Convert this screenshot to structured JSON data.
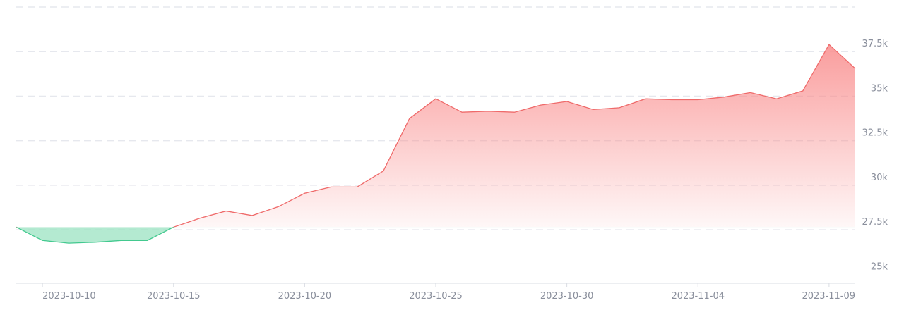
{
  "chart_data": {
    "type": "area",
    "baseline": 27650,
    "x": [
      "2023-10-09",
      "2023-10-10",
      "2023-10-11",
      "2023-10-12",
      "2023-10-13",
      "2023-10-14",
      "2023-10-15",
      "2023-10-16",
      "2023-10-17",
      "2023-10-18",
      "2023-10-19",
      "2023-10-20",
      "2023-10-21",
      "2023-10-22",
      "2023-10-23",
      "2023-10-24",
      "2023-10-25",
      "2023-10-26",
      "2023-10-27",
      "2023-10-28",
      "2023-10-29",
      "2023-10-30",
      "2023-10-31",
      "2023-11-01",
      "2023-11-02",
      "2023-11-03",
      "2023-11-04",
      "2023-11-05",
      "2023-11-06",
      "2023-11-07",
      "2023-11-08",
      "2023-11-09",
      "2023-11-10"
    ],
    "values": [
      27650,
      26900,
      26750,
      26800,
      26900,
      26900,
      27650,
      28150,
      28550,
      28300,
      28800,
      29550,
      29900,
      29900,
      30800,
      33750,
      34850,
      34100,
      34150,
      34100,
      34500,
      34700,
      34250,
      34350,
      34850,
      34800,
      34800,
      34950,
      35200,
      34850,
      35300,
      37900,
      36550
    ],
    "x_ticks": [
      "2023-10-10",
      "2023-10-15",
      "2023-10-20",
      "2023-10-25",
      "2023-10-30",
      "2023-11-04",
      "2023-11-09"
    ],
    "y_ticks": [
      {
        "value": 25000,
        "label": "25k"
      },
      {
        "value": 27500,
        "label": "27.5k"
      },
      {
        "value": 30000,
        "label": "30k"
      },
      {
        "value": 32500,
        "label": "32.5k"
      },
      {
        "value": 35000,
        "label": "35k"
      },
      {
        "value": 37500,
        "label": "37.5k"
      }
    ],
    "ylim": [
      24500,
      40000
    ],
    "y_axis_side": "right",
    "grid": true,
    "colors": {
      "up_line": "#ef6a6a",
      "up_fill": "#f98c8c",
      "down_line": "#43c98f",
      "down_fill": "#9be3c2",
      "grid": "#e6e8ee",
      "axis": "#d9dce3",
      "tick_text": "#8a8f9c"
    }
  }
}
